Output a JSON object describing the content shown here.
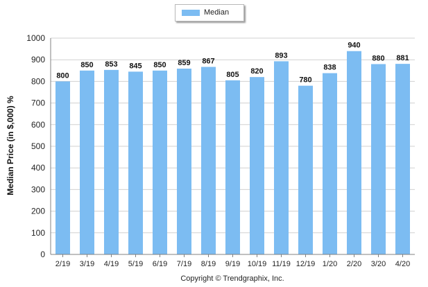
{
  "legend": {
    "label": "Median",
    "color": "#7cbcf2"
  },
  "copyright": "Copyright © Trendgraphix, Inc.",
  "chart_data": {
    "type": "bar",
    "categories": [
      "2/19",
      "3/19",
      "4/19",
      "5/19",
      "6/19",
      "7/19",
      "8/19",
      "9/19",
      "10/19",
      "11/19",
      "12/19",
      "1/20",
      "2/20",
      "3/20",
      "4/20"
    ],
    "series": [
      {
        "name": "Median",
        "values": [
          800,
          850,
          853,
          845,
          850,
          859,
          867,
          805,
          820,
          893,
          780,
          838,
          940,
          880,
          881
        ]
      }
    ],
    "title": "",
    "xlabel": "",
    "ylabel": "Median Price (in $,000) %",
    "ylim": [
      0,
      1000
    ],
    "yticks": [
      0,
      100,
      200,
      300,
      400,
      500,
      600,
      700,
      800,
      900,
      1000
    ],
    "grid": true,
    "legend_position": "top-center",
    "bar_color": "#7cbcf2",
    "data_labels": true
  }
}
